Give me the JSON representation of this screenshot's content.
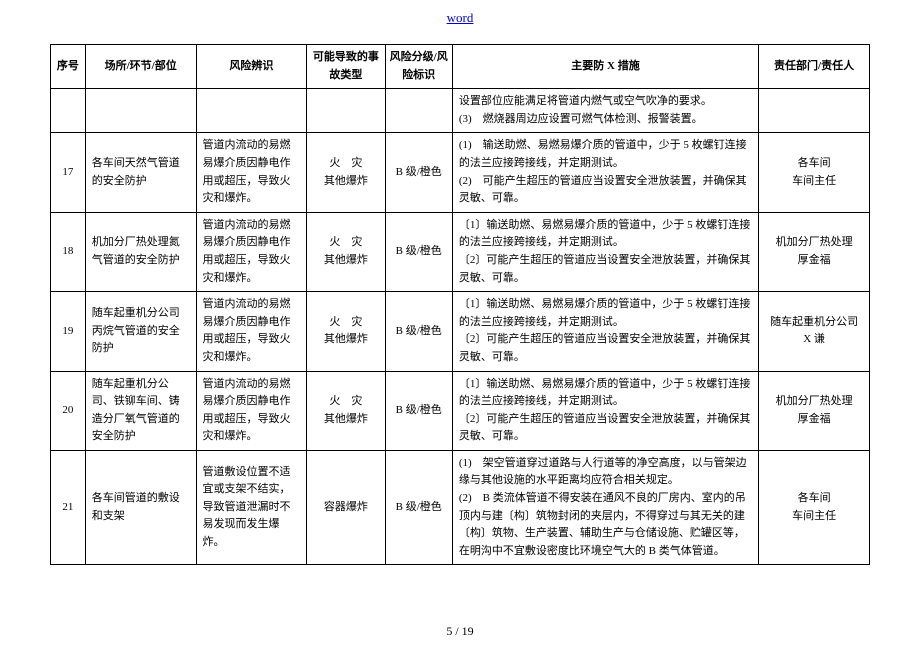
{
  "header": {
    "link_text": "word"
  },
  "table": {
    "columns": [
      "序号",
      "场所/环节/部位",
      "风险辨识",
      "可能导致的事故类型",
      "风险分级/风险标识",
      "主要防 X 措施",
      "责任部门/责任人"
    ],
    "rows": [
      {
        "seq": "",
        "loc": "",
        "risk": "",
        "acc": "",
        "level": "",
        "measure": "设置部位应能满足将管道内燃气或空气吹净的要求。\n(3)　燃烧器周边应设置可燃气体检测、报警装置。",
        "resp": ""
      },
      {
        "seq": "17",
        "loc": "各车间天然气管道的安全防护",
        "risk": "管道内流动的易燃易爆介质因静电作用或超压，导致火灾和爆炸。",
        "acc": "火　灾\n其他爆炸",
        "level": "B 级/橙色",
        "measure": "(1)　输送助燃、易燃易爆介质的管道中，少于 5 枚螺钉连接的法兰应接跨接线，并定期测试。\n(2)　可能产生超压的管道应当设置安全泄放装置，并确保其灵敏、可靠。",
        "resp": "各车间\n车间主任"
      },
      {
        "seq": "18",
        "loc": "机加分厂热处理氮气管道的安全防护",
        "risk": "管道内流动的易燃易爆介质因静电作用或超压，导致火灾和爆炸。",
        "acc": "火　灾\n其他爆炸",
        "level": "B 级/橙色",
        "measure": "〔1〕输送助燃、易燃易爆介质的管道中，少于 5 枚螺钉连接的法兰应接跨接线，并定期测试。\n〔2〕可能产生超压的管道应当设置安全泄放装置，并确保其灵敏、可靠。",
        "resp": "机加分厂热处理\n厚金福"
      },
      {
        "seq": "19",
        "loc": "随车起重机分公司丙烷气管道的安全防护",
        "risk": "管道内流动的易燃易爆介质因静电作用或超压，导致火灾和爆炸。",
        "acc": "火　灾\n其他爆炸",
        "level": "B 级/橙色",
        "measure": "〔1〕输送助燃、易燃易爆介质的管道中，少于 5 枚螺钉连接的法兰应接跨接线，并定期测试。\n〔2〕可能产生超压的管道应当设置安全泄放装置，并确保其灵敏、可靠。",
        "resp": "随车起重机分公司\nX 谦"
      },
      {
        "seq": "20",
        "loc": "随车起重机分公司、铁铆车间、铸造分厂氧气管道的安全防护",
        "risk": "管道内流动的易燃易爆介质因静电作用或超压，导致火灾和爆炸。",
        "acc": "火　灾\n其他爆炸",
        "level": "B 级/橙色",
        "measure": "〔1〕输送助燃、易燃易爆介质的管道中，少于 5 枚螺钉连接的法兰应接跨接线，并定期测试。\n〔2〕可能产生超压的管道应当设置安全泄放装置，并确保其灵敏、可靠。",
        "resp": "机加分厂热处理\n厚金福"
      },
      {
        "seq": "21",
        "loc": "各车间管道的敷设和支架",
        "risk": "管道敷设位置不适宜或支架不结实，导致管道泄漏时不易发现而发生爆炸。",
        "acc": "容器爆炸",
        "level": "B 级/橙色",
        "measure": "(1)　架空管道穿过道路与人行道等的净空高度，以与管架边缘与其他设施的水平距离均应符合相关规定。\n(2)　B 类流体管道不得安装在通风不良的厂房内、室内的吊顶内与建〔构〕筑物封闭的夹层内，不得穿过与其无关的建〔构〕筑物、生产装置、辅助生产与仓储设施、贮罐区等，在明沟中不宜敷设密度比环境空气大的 B 类气体管道。",
        "resp": "各车间\n车间主任"
      }
    ]
  },
  "footer": {
    "page": "5 / 19"
  }
}
